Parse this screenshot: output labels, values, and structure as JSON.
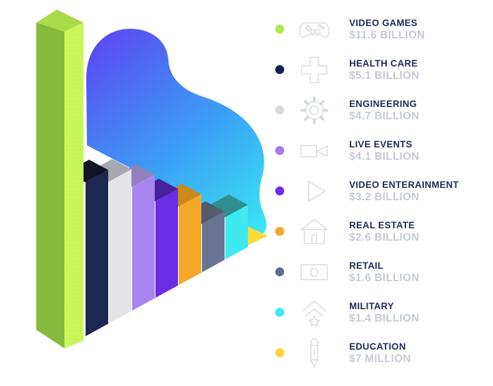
{
  "chart_data": {
    "type": "bar",
    "style": "isometric-3d-perspective-infographic",
    "unit": "USD",
    "legend_position": "right",
    "items": [
      {
        "label": "VIDEO GAMES",
        "value": "$11.6 BILLION",
        "value_billions": 11.6,
        "dot_color": "#b2e94b",
        "icon": "game-controller-icon",
        "bar": {
          "front": "#c9f75a",
          "side": "#85ba3e",
          "top": "#a9dc4a"
        }
      },
      {
        "label": "HEALTH CARE",
        "value": "$5.1 BILLION",
        "value_billions": 5.1,
        "dot_color": "#16204e",
        "icon": "medical-cross-icon",
        "bar": {
          "front": "#1c2752",
          "top": "#131327"
        }
      },
      {
        "label": "ENGINEERING",
        "value": "$4.7 BILLION",
        "value_billions": 4.7,
        "dot_color": "#d8d9dd",
        "icon": "gear-icon",
        "bar": {
          "front": "#e4e4e8",
          "top": "#a7a8b0"
        }
      },
      {
        "label": "LIVE EVENTS",
        "value": "$4.1 BILLION",
        "value_billions": 4.1,
        "dot_color": "#a678f2",
        "icon": "video-camera-icon",
        "bar": {
          "front": "#a885f0",
          "top": "#9182bd"
        }
      },
      {
        "label": "VIDEO ENTERAINMENT",
        "value": "$3.2 BILLION",
        "value_billions": 3.2,
        "dot_color": "#6d2de8",
        "icon": "play-icon",
        "bar": {
          "front": "#6b2ce5",
          "top": "#47209d"
        }
      },
      {
        "label": "REAL ESTATE",
        "value": "$2.6 BILLION",
        "value_billions": 2.6,
        "dot_color": "#f7a726",
        "icon": "house-icon",
        "bar": {
          "front": "#f4a827",
          "top": "#cc8a1b"
        }
      },
      {
        "label": "RETAIL",
        "value": "$1.6 BILLION",
        "value_billions": 1.6,
        "dot_color": "#636c91",
        "icon": "money-icon",
        "bar": {
          "front": "#6b7394",
          "top": "#545a70"
        }
      },
      {
        "label": "MILITARY",
        "value": "$1.4 BILLION",
        "value_billions": 1.4,
        "dot_color": "#3ee7f2",
        "icon": "military-rank-icon",
        "bar": {
          "front": "#3ee9ef",
          "top": "#2f8f8e"
        }
      },
      {
        "label": "EDUCATION",
        "value": "$7 MILLION",
        "value_billions": 0.007,
        "dot_color": "#fbd53a",
        "icon": "pencil-icon",
        "bar": {
          "front": "#fbd93d"
        }
      }
    ],
    "blob_gradient": {
      "from": "#5b49f1",
      "mid": "#3b9ff5",
      "to": "#3ae3f3"
    }
  },
  "text_colors": {
    "label": "#1d2a58",
    "value": "#c5cad6"
  }
}
